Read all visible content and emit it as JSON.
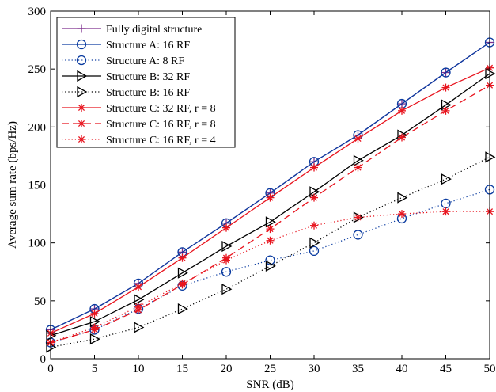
{
  "chart_data": {
    "type": "line",
    "title": "",
    "xlabel": "SNR (dB)",
    "ylabel": "Average sum rate (bps/Hz)",
    "xlim": [
      0,
      50
    ],
    "ylim": [
      0,
      300
    ],
    "x": [
      0,
      5,
      10,
      15,
      20,
      25,
      30,
      35,
      40,
      45,
      50
    ],
    "xticks": [
      "0",
      "5",
      "10",
      "15",
      "20",
      "25",
      "30",
      "35",
      "40",
      "45",
      "50"
    ],
    "yticks": [
      "0",
      "50",
      "100",
      "150",
      "200",
      "250",
      "300"
    ],
    "grid": false,
    "legend_position": "top-left",
    "series": [
      {
        "name": "Fully digital structure",
        "color": "#7E2F8E",
        "line": "solid",
        "marker": "plus",
        "values": [
          25,
          43,
          65,
          92,
          117,
          143,
          170,
          193,
          220,
          247,
          273
        ]
      },
      {
        "name": "Structure A: 16 RF",
        "color": "#0A3BA0",
        "line": "solid",
        "marker": "circle",
        "values": [
          25,
          43,
          65,
          92,
          117,
          143,
          170,
          193,
          220,
          247,
          273
        ]
      },
      {
        "name": "Structure A: 8 RF",
        "color": "#0A3BA0",
        "line": "dotted",
        "marker": "circle",
        "values": [
          14,
          25,
          43,
          63,
          75,
          85,
          93,
          107,
          121,
          134,
          146
        ]
      },
      {
        "name": "Structure B: 32 RF",
        "color": "#000000",
        "line": "solid",
        "marker": "triangle-right",
        "values": [
          20,
          32,
          51,
          74,
          97,
          118,
          144,
          171,
          193,
          219,
          246
        ]
      },
      {
        "name": "Structure B: 16 RF",
        "color": "#000000",
        "line": "dotted",
        "marker": "triangle-right",
        "values": [
          10,
          17,
          27,
          43,
          60,
          80,
          100,
          122,
          139,
          155,
          174
        ]
      },
      {
        "name": "Structure C: 32 RF, r = 8",
        "color": "#E8141E",
        "line": "solid",
        "marker": "asterisk",
        "values": [
          22,
          39,
          62,
          87,
          113,
          139,
          165,
          190,
          214,
          234,
          251
        ]
      },
      {
        "name": "Structure C: 16 RF, r = 8",
        "color": "#E8141E",
        "line": "dashed",
        "marker": "asterisk",
        "values": [
          14,
          25,
          42,
          64,
          87,
          112,
          139,
          165,
          191,
          214,
          236
        ]
      },
      {
        "name": "Structure C: 16 RF, r = 4",
        "color": "#E8141E",
        "line": "dotted",
        "marker": "asterisk",
        "values": [
          14,
          27,
          45,
          65,
          85,
          102,
          115,
          122,
          125,
          127,
          127
        ]
      }
    ]
  }
}
